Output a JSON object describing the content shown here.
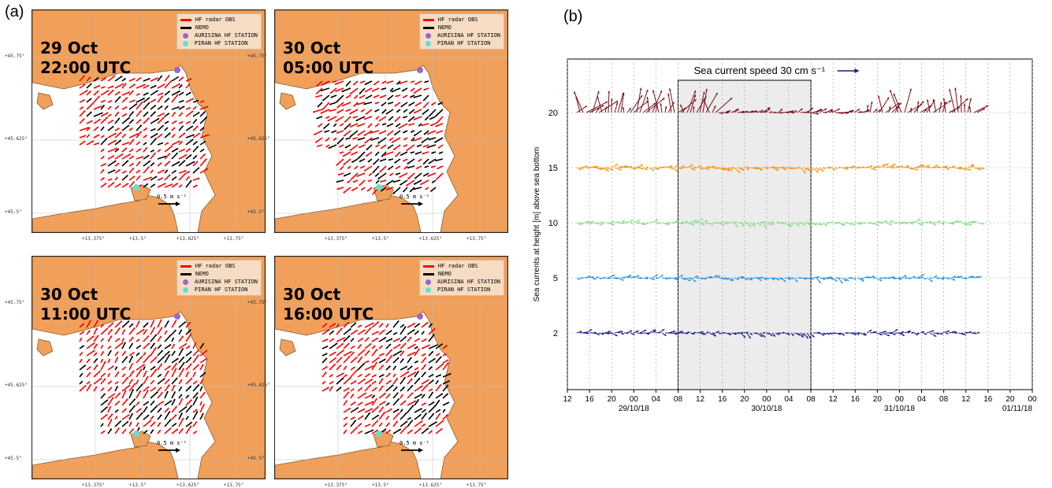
{
  "panel_a": {
    "label": "(a)",
    "legend": {
      "hf_radar": {
        "label": "HF radar OBS",
        "color": "#ff0000"
      },
      "nemo": {
        "label": "NEMO",
        "color": "#000000"
      },
      "aurisina": {
        "label": "AURISINA HF STATION",
        "color": "#9966cc"
      },
      "piran": {
        "label": "PIRAN HF STATION",
        "color": "#66e0c8"
      }
    },
    "lat_labels": [
      "+45.75°",
      "+45.625°",
      "+45.5°"
    ],
    "lon_labels": [
      "+13.375°",
      "+13.5°",
      "+13.625°",
      "+13.75°"
    ],
    "scale_label": "0.5 m s⁻¹",
    "land_color": "#f0a05a",
    "maps": [
      {
        "title": "29 Oct\n22:00 UTC",
        "direction": -35
      },
      {
        "title": "30 Oct\n05:00 UTC",
        "direction": 150
      },
      {
        "title": "30 Oct\n11:00 UTC",
        "direction": -50
      },
      {
        "title": "30 Oct\n16:00 UTC",
        "direction": -40
      }
    ]
  },
  "panel_b": {
    "label": "(b)",
    "chart_data": {
      "type": "quiver",
      "ylabel": "Sea currents at height [m] above sea bottom",
      "ytick_labels": [
        "20",
        "15",
        "10",
        "5",
        "2"
      ],
      "xtick_labels": [
        "12",
        "16",
        "20",
        "00",
        "04",
        "08",
        "12",
        "16",
        "20",
        "00",
        "04",
        "08",
        "12",
        "16",
        "20",
        "00",
        "04",
        "08",
        "12",
        "16",
        "20",
        "00"
      ],
      "date_labels": [
        "29/10/18",
        "30/10/18",
        "31/10/18",
        "01/11/18"
      ],
      "reference_label": "Sea current speed 30 cm s⁻¹",
      "highlight": {
        "from": "16 on 29/10/18",
        "to": "16 on 30/10/18"
      },
      "grid": true,
      "series": [
        {
          "name": "20",
          "color": "#7b0f1a"
        },
        {
          "name": "15",
          "color": "#ff8c00"
        },
        {
          "name": "10",
          "color": "#7ce07c"
        },
        {
          "name": "5",
          "color": "#1e8fe6"
        },
        {
          "name": "2",
          "color": "#1a1a8c"
        }
      ]
    }
  }
}
